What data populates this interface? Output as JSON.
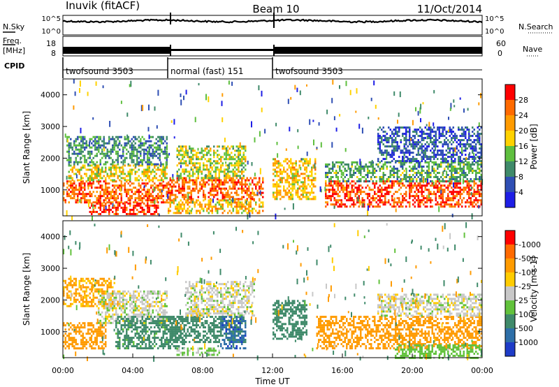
{
  "header": {
    "station": "Inuvik (fitACF)",
    "beam": "Beam 10",
    "date": "11/Oct/2014"
  },
  "noise_panel": {
    "left_label": "N.Sky",
    "right_label": "N.Search",
    "left_ticks": [
      "10^5",
      "10^0"
    ],
    "right_ticks": [
      "10^5",
      "10^0"
    ]
  },
  "freq_panel": {
    "left_label_line1": "Freq.",
    "left_label_line2": "[MHz]",
    "right_label": "Nave",
    "left_ticks": [
      "18",
      "8"
    ],
    "right_ticks": [
      "60",
      "0"
    ]
  },
  "cpid": {
    "label": "CPID",
    "segments": [
      {
        "name": "twofsound 3503",
        "start_hour": 0,
        "end_hour": 6
      },
      {
        "name": "normal (fast) 151",
        "start_hour": 6,
        "end_hour": 12
      },
      {
        "name": "twofsound 3503",
        "start_hour": 12,
        "end_hour": 24
      }
    ]
  },
  "chart_data": [
    {
      "type": "heatmap",
      "panel": "power",
      "ylabel": "Slant Range [km]",
      "xlabel": "",
      "ylim": [
        180,
        4500
      ],
      "xlim": [
        0,
        24
      ],
      "yticks": [
        1000,
        2000,
        3000,
        4000
      ],
      "colorbar": {
        "label": "Power [dB]",
        "levels": [
          4,
          8,
          12,
          16,
          20,
          24,
          28
        ],
        "colors": [
          "#1e1ee6",
          "#2f4fb4",
          "#3f8a6a",
          "#5fbf3f",
          "#ffd200",
          "#ff9b00",
          "#ff6a00",
          "#ff0000"
        ]
      },
      "regions": [
        {
          "x0": 0.0,
          "x1": 6.0,
          "y0": 600,
          "y1": 1300,
          "value": 26
        },
        {
          "x0": 0.3,
          "x1": 6.0,
          "y0": 1300,
          "y1": 1800,
          "value": 18
        },
        {
          "x0": 0.2,
          "x1": 6.0,
          "y0": 1800,
          "y1": 2700,
          "value": 10
        },
        {
          "x0": 1.5,
          "x1": 5.5,
          "y0": 250,
          "y1": 600,
          "value": 28
        },
        {
          "x0": 6.0,
          "x1": 11.5,
          "y0": 700,
          "y1": 1400,
          "value": 26
        },
        {
          "x0": 6.5,
          "x1": 10.5,
          "y0": 1400,
          "y1": 2400,
          "value": 16
        },
        {
          "x0": 6.0,
          "x1": 11.5,
          "y0": 250,
          "y1": 700,
          "value": 20
        },
        {
          "x0": 12.0,
          "x1": 14.5,
          "y0": 700,
          "y1": 2000,
          "value": 20
        },
        {
          "x0": 15.0,
          "x1": 24.0,
          "y0": 500,
          "y1": 1300,
          "value": 28
        },
        {
          "x0": 15.0,
          "x1": 24.0,
          "y0": 1300,
          "y1": 1900,
          "value": 12
        },
        {
          "x0": 18.0,
          "x1": 24.0,
          "y0": 1900,
          "y1": 3000,
          "value": 6
        }
      ]
    },
    {
      "type": "heatmap",
      "panel": "velocity",
      "ylabel": "Slant Range [km]",
      "xlabel": "Time UT",
      "ylim": [
        180,
        4500
      ],
      "xlim": [
        0,
        24
      ],
      "yticks": [
        1000,
        2000,
        3000,
        4000
      ],
      "xticks": [
        "00:00",
        "04:00",
        "08:00",
        "12:00",
        "16:00",
        "20:00",
        "00:00"
      ],
      "colorbar": {
        "label": "Velocity [m s-1]",
        "levels": [
          1000,
          500,
          100,
          25,
          -25,
          -100,
          -500,
          -1000
        ],
        "colors": [
          "#1e3cc8",
          "#2e6fa8",
          "#3f8a6a",
          "#62c23c",
          "#c8c8c8",
          "#ffcc00",
          "#ff9b00",
          "#ff6a00",
          "#ff0000"
        ]
      },
      "regions": [
        {
          "x0": 0.0,
          "x1": 2.5,
          "y0": 500,
          "y1": 1300,
          "value": -300
        },
        {
          "x0": 0.0,
          "x1": 3.0,
          "y0": 1800,
          "y1": 2700,
          "value": -120
        },
        {
          "x0": 2.0,
          "x1": 6.0,
          "y0": 1300,
          "y1": 2300,
          "value": 0
        },
        {
          "x0": 3.0,
          "x1": 7.0,
          "y0": 500,
          "y1": 1500,
          "value": 150
        },
        {
          "x0": 6.0,
          "x1": 10.5,
          "y0": 700,
          "y1": 1500,
          "value": 300
        },
        {
          "x0": 7.0,
          "x1": 11.0,
          "y0": 1500,
          "y1": 2600,
          "value": 0
        },
        {
          "x0": 9.0,
          "x1": 10.5,
          "y0": 500,
          "y1": 1500,
          "value": 800
        },
        {
          "x0": 6.5,
          "x1": 9.0,
          "y0": 250,
          "y1": 500,
          "value": 50
        },
        {
          "x0": 12.0,
          "x1": 14.0,
          "y0": 800,
          "y1": 2000,
          "value": 200
        },
        {
          "x0": 14.5,
          "x1": 24.0,
          "y0": 500,
          "y1": 1500,
          "value": -300
        },
        {
          "x0": 18.0,
          "x1": 24.0,
          "y0": 1500,
          "y1": 2200,
          "value": 0
        },
        {
          "x0": 19.0,
          "x1": 24.0,
          "y0": 200,
          "y1": 600,
          "value": 60
        }
      ]
    }
  ]
}
